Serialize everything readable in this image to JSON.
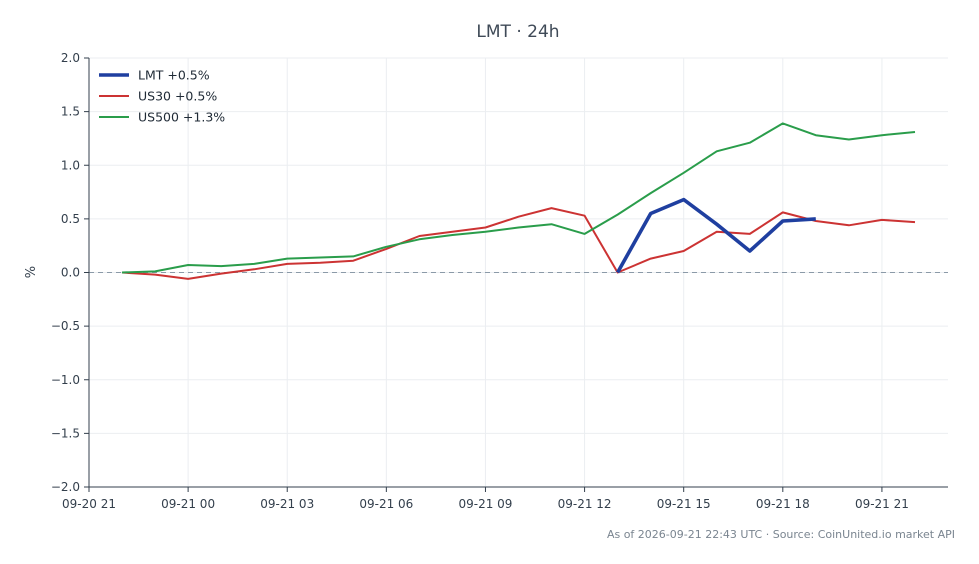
{
  "chart_data": {
    "type": "line",
    "title": "LMT · 24h",
    "ylabel": "%",
    "xlabel": "",
    "ylim": [
      -2.0,
      2.0
    ],
    "xlim": [
      0,
      26
    ],
    "grid": true,
    "legend_position": "top-left",
    "zero_line": true,
    "footer": "As of 2026-09-21 22:43 UTC · Source: CoinUnited.io market API",
    "x_ticks": [
      {
        "x": 0,
        "label": "09-20 21"
      },
      {
        "x": 3,
        "label": "09-21 00"
      },
      {
        "x": 6,
        "label": "09-21 03"
      },
      {
        "x": 9,
        "label": "09-21 06"
      },
      {
        "x": 12,
        "label": "09-21 09"
      },
      {
        "x": 15,
        "label": "09-21 12"
      },
      {
        "x": 18,
        "label": "09-21 15"
      },
      {
        "x": 21,
        "label": "09-21 18"
      },
      {
        "x": 24,
        "label": "09-21 21"
      }
    ],
    "y_ticks": [
      {
        "y": 2.0,
        "label": "2.0"
      },
      {
        "y": 1.5,
        "label": "1.5"
      },
      {
        "y": 1.0,
        "label": "1.0"
      },
      {
        "y": 0.5,
        "label": "0.5"
      },
      {
        "y": 0.0,
        "label": "0.0"
      },
      {
        "y": -0.5,
        "label": "−0.5"
      },
      {
        "y": -1.0,
        "label": "−1.0"
      },
      {
        "y": -1.5,
        "label": "−1.5"
      },
      {
        "y": -2.0,
        "label": "−2.0"
      }
    ],
    "series": [
      {
        "name": "LMT +0.5%",
        "color": "#1f3fa0",
        "width": 3.6,
        "x": [
          16,
          17,
          18,
          19,
          20,
          21,
          22
        ],
        "y": [
          0.0,
          0.55,
          0.68,
          0.45,
          0.2,
          0.48,
          0.5
        ]
      },
      {
        "name": "US30 +0.5%",
        "color": "#cc3333",
        "width": 2,
        "x": [
          1,
          2,
          3,
          4,
          5,
          6,
          7,
          8,
          9,
          10,
          11,
          12,
          13,
          14,
          15,
          16,
          17,
          18,
          19,
          20,
          21,
          22,
          23,
          24,
          25
        ],
        "y": [
          0.0,
          -0.02,
          -0.06,
          -0.01,
          0.03,
          0.08,
          0.09,
          0.11,
          0.22,
          0.34,
          0.38,
          0.42,
          0.52,
          0.6,
          0.53,
          0.0,
          0.13,
          0.2,
          0.38,
          0.36,
          0.56,
          0.48,
          0.44,
          0.49,
          0.47
        ]
      },
      {
        "name": "US500 +1.3%",
        "color": "#2a9d4b",
        "width": 2,
        "x": [
          1,
          2,
          3,
          4,
          5,
          6,
          7,
          8,
          9,
          10,
          11,
          12,
          13,
          14,
          15,
          16,
          17,
          18,
          19,
          20,
          21,
          22,
          23,
          24,
          25
        ],
        "y": [
          0.0,
          0.01,
          0.07,
          0.06,
          0.08,
          0.13,
          0.14,
          0.15,
          0.24,
          0.31,
          0.35,
          0.38,
          0.42,
          0.45,
          0.36,
          0.54,
          0.74,
          0.93,
          1.13,
          1.21,
          1.39,
          1.28,
          1.24,
          1.28,
          1.31
        ]
      }
    ]
  }
}
